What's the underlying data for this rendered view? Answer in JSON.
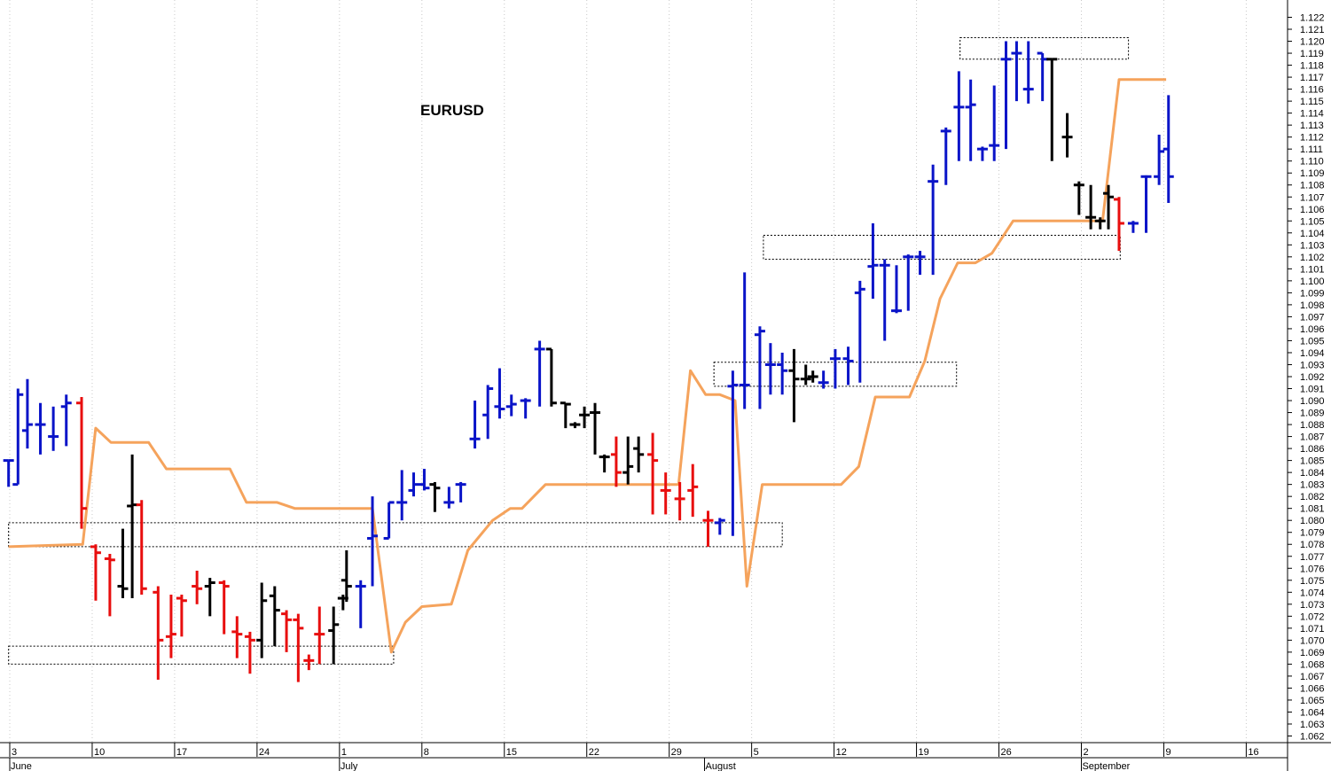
{
  "chart_data": {
    "type": "ohlc",
    "title": "EURUSD",
    "ylim": [
      1.0615,
      1.1228
    ],
    "y_ticks": [
      "1.062",
      "1.063",
      "1.064",
      "1.065",
      "1.066",
      "1.067",
      "1.068",
      "1.069",
      "1.070",
      "1.071",
      "1.072",
      "1.073",
      "1.074",
      "1.075",
      "1.076",
      "1.077",
      "1.078",
      "1.079",
      "1.080",
      "1.081",
      "1.082",
      "1.083",
      "1.084",
      "1.085",
      "1.086",
      "1.087",
      "1.088",
      "1.089",
      "1.090",
      "1.091",
      "1.092",
      "1.093",
      "1.094",
      "1.095",
      "1.096",
      "1.097",
      "1.098",
      "1.099",
      "1.100",
      "1.101",
      "1.102",
      "1.103",
      "1.104",
      "1.105",
      "1.106",
      "1.107",
      "1.108",
      "1.109",
      "1.110",
      "1.111",
      "1.112",
      "1.113",
      "1.114",
      "1.115",
      "1.116",
      "1.117",
      "1.118",
      "1.119",
      "1.120",
      "1.121",
      "1.122"
    ],
    "x_ticks": [
      {
        "label": "3",
        "day": 0
      },
      {
        "label": "10",
        "day": 7
      },
      {
        "label": "17",
        "day": 14
      },
      {
        "label": "24",
        "day": 21
      },
      {
        "label": "1",
        "day": 28
      },
      {
        "label": "8",
        "day": 35
      },
      {
        "label": "15",
        "day": 42
      },
      {
        "label": "22",
        "day": 49
      },
      {
        "label": "29",
        "day": 56
      },
      {
        "label": "5",
        "day": 63
      },
      {
        "label": "12",
        "day": 70
      },
      {
        "label": "19",
        "day": 77
      },
      {
        "label": "26",
        "day": 84
      },
      {
        "label": "2",
        "day": 91
      },
      {
        "label": "9",
        "day": 98
      },
      {
        "label": "16",
        "day": 105
      }
    ],
    "months": [
      {
        "label": "June",
        "day": 0
      },
      {
        "label": "July",
        "day": 28
      },
      {
        "label": "August",
        "day": 59
      },
      {
        "label": "September",
        "day": 91
      }
    ],
    "colors": {
      "up": "#0a14c8",
      "down": "#e80e0e",
      "neutral": "#000000",
      "line": "#f5a35c",
      "background": "#ffffff"
    },
    "bars": [
      {
        "day": -0.1,
        "o": 1.085,
        "h": 1.085,
        "l": 1.0828,
        "c": 1.085,
        "color": "up"
      },
      {
        "day": 0.7,
        "o": 1.083,
        "h": 1.091,
        "l": 1.083,
        "c": 1.0905,
        "color": "up"
      },
      {
        "day": 1.5,
        "o": 1.0875,
        "h": 1.0918,
        "l": 1.086,
        "c": 1.088,
        "color": "up"
      },
      {
        "day": 2.6,
        "o": 1.088,
        "h": 1.0898,
        "l": 1.0855,
        "c": 1.088,
        "color": "up"
      },
      {
        "day": 3.7,
        "o": 1.087,
        "h": 1.0895,
        "l": 1.0858,
        "c": 1.087,
        "color": "up"
      },
      {
        "day": 4.8,
        "o": 1.0895,
        "h": 1.0905,
        "l": 1.0862,
        "c": 1.0898,
        "color": "up"
      },
      {
        "day": 6.1,
        "o": 1.0898,
        "h": 1.0903,
        "l": 1.0793,
        "c": 1.081,
        "color": "down"
      },
      {
        "day": 7.3,
        "o": 1.0778,
        "h": 1.078,
        "l": 1.0733,
        "c": 1.0773,
        "color": "down"
      },
      {
        "day": 8.5,
        "o": 1.0768,
        "h": 1.0772,
        "l": 1.072,
        "c": 1.0767,
        "color": "down"
      },
      {
        "day": 9.6,
        "o": 1.0745,
        "h": 1.0793,
        "l": 1.0735,
        "c": 1.0743,
        "color": "neutral"
      },
      {
        "day": 10.4,
        "o": 1.0812,
        "h": 1.0855,
        "l": 1.0735,
        "c": 1.0813,
        "color": "neutral"
      },
      {
        "day": 11.2,
        "o": 1.0813,
        "h": 1.0817,
        "l": 1.0738,
        "c": 1.0743,
        "color": "down"
      },
      {
        "day": 12.6,
        "o": 1.074,
        "h": 1.0745,
        "l": 1.0667,
        "c": 1.07,
        "color": "down"
      },
      {
        "day": 13.7,
        "o": 1.0703,
        "h": 1.0738,
        "l": 1.0685,
        "c": 1.0705,
        "color": "down"
      },
      {
        "day": 14.6,
        "o": 1.0735,
        "h": 1.0738,
        "l": 1.0703,
        "c": 1.0733,
        "color": "down"
      },
      {
        "day": 15.9,
        "o": 1.0745,
        "h": 1.0758,
        "l": 1.073,
        "c": 1.0743,
        "color": "down"
      },
      {
        "day": 17.0,
        "o": 1.0745,
        "h": 1.0752,
        "l": 1.072,
        "c": 1.0748,
        "color": "neutral"
      },
      {
        "day": 18.2,
        "o": 1.0748,
        "h": 1.075,
        "l": 1.0705,
        "c": 1.0745,
        "color": "down"
      },
      {
        "day": 19.3,
        "o": 1.0707,
        "h": 1.072,
        "l": 1.0685,
        "c": 1.0705,
        "color": "down"
      },
      {
        "day": 20.4,
        "o": 1.0703,
        "h": 1.0707,
        "l": 1.0672,
        "c": 1.07,
        "color": "down"
      },
      {
        "day": 21.4,
        "o": 1.07,
        "h": 1.0748,
        "l": 1.0685,
        "c": 1.0733,
        "color": "neutral"
      },
      {
        "day": 22.5,
        "o": 1.0737,
        "h": 1.0745,
        "l": 1.0695,
        "c": 1.0725,
        "color": "neutral"
      },
      {
        "day": 23.5,
        "o": 1.0722,
        "h": 1.0725,
        "l": 1.069,
        "c": 1.0717,
        "color": "down"
      },
      {
        "day": 24.5,
        "o": 1.0717,
        "h": 1.0722,
        "l": 1.0665,
        "c": 1.071,
        "color": "down"
      },
      {
        "day": 25.4,
        "o": 1.0683,
        "h": 1.0688,
        "l": 1.0675,
        "c": 1.0683,
        "color": "down"
      },
      {
        "day": 26.3,
        "o": 1.0705,
        "h": 1.0728,
        "l": 1.068,
        "c": 1.0705,
        "color": "down"
      },
      {
        "day": 27.5,
        "o": 1.0708,
        "h": 1.0728,
        "l": 1.068,
        "c": 1.0713,
        "color": "neutral"
      },
      {
        "day": 28.3,
        "o": 1.0735,
        "h": 1.0738,
        "l": 1.0725,
        "c": 1.0735,
        "color": "neutral"
      },
      {
        "day": 28.6,
        "o": 1.075,
        "h": 1.0775,
        "l": 1.0732,
        "c": 1.0745,
        "color": "neutral"
      },
      {
        "day": 29.8,
        "o": 1.0745,
        "h": 1.075,
        "l": 1.071,
        "c": 1.0745,
        "color": "up"
      },
      {
        "day": 30.8,
        "o": 1.0785,
        "h": 1.082,
        "l": 1.0745,
        "c": 1.0787,
        "color": "up"
      },
      {
        "day": 32.2,
        "o": 1.0785,
        "h": 1.0815,
        "l": 1.0785,
        "c": 1.0815,
        "color": "up"
      },
      {
        "day": 33.3,
        "o": 1.0815,
        "h": 1.0842,
        "l": 1.08,
        "c": 1.0815,
        "color": "up"
      },
      {
        "day": 34.3,
        "o": 1.0825,
        "h": 1.084,
        "l": 1.082,
        "c": 1.083,
        "color": "up"
      },
      {
        "day": 35.2,
        "o": 1.083,
        "h": 1.0843,
        "l": 1.0825,
        "c": 1.0827,
        "color": "up"
      },
      {
        "day": 36.1,
        "o": 1.083,
        "h": 1.0832,
        "l": 1.0807,
        "c": 1.0827,
        "color": "neutral"
      },
      {
        "day": 37.3,
        "o": 1.0815,
        "h": 1.0828,
        "l": 1.081,
        "c": 1.0815,
        "color": "up"
      },
      {
        "day": 38.3,
        "o": 1.083,
        "h": 1.0832,
        "l": 1.0815,
        "c": 1.083,
        "color": "up"
      },
      {
        "day": 39.5,
        "o": 1.0868,
        "h": 1.09,
        "l": 1.086,
        "c": 1.0868,
        "color": "up"
      },
      {
        "day": 40.6,
        "o": 1.0888,
        "h": 1.0913,
        "l": 1.0868,
        "c": 1.091,
        "color": "up"
      },
      {
        "day": 41.6,
        "o": 1.0895,
        "h": 1.0927,
        "l": 1.0885,
        "c": 1.0893,
        "color": "up"
      },
      {
        "day": 42.6,
        "o": 1.0895,
        "h": 1.0905,
        "l": 1.0887,
        "c": 1.0897,
        "color": "up"
      },
      {
        "day": 43.8,
        "o": 1.09,
        "h": 1.0902,
        "l": 1.0885,
        "c": 1.09,
        "color": "up"
      },
      {
        "day": 45.0,
        "o": 1.0943,
        "h": 1.095,
        "l": 1.0895,
        "c": 1.0943,
        "color": "up"
      },
      {
        "day": 46.0,
        "o": 1.0943,
        "h": 1.0943,
        "l": 1.0895,
        "c": 1.0898,
        "color": "neutral"
      },
      {
        "day": 47.2,
        "o": 1.0898,
        "h": 1.0898,
        "l": 1.0877,
        "c": 1.0897,
        "color": "neutral"
      },
      {
        "day": 48.0,
        "o": 1.088,
        "h": 1.0882,
        "l": 1.0877,
        "c": 1.088,
        "color": "neutral"
      },
      {
        "day": 48.8,
        "o": 1.0888,
        "h": 1.0895,
        "l": 1.0877,
        "c": 1.0888,
        "color": "neutral"
      },
      {
        "day": 49.7,
        "o": 1.089,
        "h": 1.0898,
        "l": 1.0855,
        "c": 1.089,
        "color": "neutral"
      },
      {
        "day": 50.5,
        "o": 1.0853,
        "h": 1.0855,
        "l": 1.084,
        "c": 1.0853,
        "color": "neutral"
      },
      {
        "day": 51.5,
        "o": 1.0855,
        "h": 1.087,
        "l": 1.0828,
        "c": 1.084,
        "color": "down"
      },
      {
        "day": 52.5,
        "o": 1.084,
        "h": 1.087,
        "l": 1.083,
        "c": 1.0845,
        "color": "neutral"
      },
      {
        "day": 53.4,
        "o": 1.086,
        "h": 1.087,
        "l": 1.084,
        "c": 1.0855,
        "color": "neutral"
      },
      {
        "day": 54.6,
        "o": 1.0855,
        "h": 1.0873,
        "l": 1.0805,
        "c": 1.085,
        "color": "down"
      },
      {
        "day": 55.7,
        "o": 1.0825,
        "h": 1.084,
        "l": 1.0805,
        "c": 1.0825,
        "color": "down"
      },
      {
        "day": 56.9,
        "o": 1.0818,
        "h": 1.0832,
        "l": 1.08,
        "c": 1.0818,
        "color": "down"
      },
      {
        "day": 58.0,
        "o": 1.0825,
        "h": 1.0847,
        "l": 1.0803,
        "c": 1.0828,
        "color": "down"
      },
      {
        "day": 59.3,
        "o": 1.08,
        "h": 1.0808,
        "l": 1.0778,
        "c": 1.08,
        "color": "down"
      },
      {
        "day": 60.3,
        "o": 1.0798,
        "h": 1.0802,
        "l": 1.0788,
        "c": 1.08,
        "color": "up"
      },
      {
        "day": 61.4,
        "o": 1.0912,
        "h": 1.0925,
        "l": 1.0787,
        "c": 1.0913,
        "color": "up"
      },
      {
        "day": 62.4,
        "o": 1.0913,
        "h": 1.1007,
        "l": 1.0893,
        "c": 1.0913,
        "color": "up"
      },
      {
        "day": 63.7,
        "o": 1.0955,
        "h": 1.0962,
        "l": 1.0893,
        "c": 1.0958,
        "color": "up"
      },
      {
        "day": 64.6,
        "o": 1.093,
        "h": 1.0948,
        "l": 1.0905,
        "c": 1.093,
        "color": "up"
      },
      {
        "day": 65.6,
        "o": 1.093,
        "h": 1.094,
        "l": 1.0905,
        "c": 1.0925,
        "color": "up"
      },
      {
        "day": 66.6,
        "o": 1.0925,
        "h": 1.0943,
        "l": 1.0882,
        "c": 1.0918,
        "color": "neutral"
      },
      {
        "day": 67.6,
        "o": 1.0918,
        "h": 1.093,
        "l": 1.0913,
        "c": 1.0918,
        "color": "neutral"
      },
      {
        "day": 68.2,
        "o": 1.092,
        "h": 1.0925,
        "l": 1.0915,
        "c": 1.092,
        "color": "neutral"
      },
      {
        "day": 69.1,
        "o": 1.0915,
        "h": 1.0925,
        "l": 1.091,
        "c": 1.0915,
        "color": "up"
      },
      {
        "day": 70.1,
        "o": 1.0935,
        "h": 1.0943,
        "l": 1.091,
        "c": 1.0935,
        "color": "up"
      },
      {
        "day": 71.2,
        "o": 1.0935,
        "h": 1.0945,
        "l": 1.0913,
        "c": 1.0933,
        "color": "up"
      },
      {
        "day": 72.2,
        "o": 1.099,
        "h": 1.1,
        "l": 1.0915,
        "c": 1.0993,
        "color": "up"
      },
      {
        "day": 73.3,
        "o": 1.1012,
        "h": 1.1048,
        "l": 1.0985,
        "c": 1.1013,
        "color": "up"
      },
      {
        "day": 74.3,
        "o": 1.1013,
        "h": 1.1018,
        "l": 1.095,
        "c": 1.1013,
        "color": "up"
      },
      {
        "day": 75.3,
        "o": 1.0975,
        "h": 1.1013,
        "l": 1.0973,
        "c": 1.0975,
        "color": "up"
      },
      {
        "day": 76.3,
        "o": 1.102,
        "h": 1.1022,
        "l": 1.0975,
        "c": 1.102,
        "color": "up"
      },
      {
        "day": 77.3,
        "o": 1.102,
        "h": 1.1025,
        "l": 1.1005,
        "c": 1.102,
        "color": "up"
      },
      {
        "day": 78.4,
        "o": 1.1083,
        "h": 1.1097,
        "l": 1.1005,
        "c": 1.1083,
        "color": "up"
      },
      {
        "day": 79.5,
        "o": 1.1125,
        "h": 1.1128,
        "l": 1.108,
        "c": 1.1125,
        "color": "up"
      },
      {
        "day": 80.6,
        "o": 1.1145,
        "h": 1.1175,
        "l": 1.11,
        "c": 1.1145,
        "color": "up"
      },
      {
        "day": 81.6,
        "o": 1.1145,
        "h": 1.1168,
        "l": 1.11,
        "c": 1.1147,
        "color": "up"
      },
      {
        "day": 82.6,
        "o": 1.111,
        "h": 1.1112,
        "l": 1.11,
        "c": 1.111,
        "color": "up"
      },
      {
        "day": 83.6,
        "o": 1.1113,
        "h": 1.1163,
        "l": 1.11,
        "c": 1.1113,
        "color": "up"
      },
      {
        "day": 84.6,
        "o": 1.1185,
        "h": 1.12,
        "l": 1.111,
        "c": 1.1185,
        "color": "up"
      },
      {
        "day": 85.5,
        "o": 1.119,
        "h": 1.12,
        "l": 1.115,
        "c": 1.119,
        "color": "up"
      },
      {
        "day": 86.5,
        "o": 1.116,
        "h": 1.12,
        "l": 1.1148,
        "c": 1.116,
        "color": "up"
      },
      {
        "day": 87.7,
        "o": 1.119,
        "h": 1.119,
        "l": 1.115,
        "c": 1.1185,
        "color": "up"
      },
      {
        "day": 88.5,
        "o": 1.1185,
        "h": 1.1185,
        "l": 1.11,
        "c": 1.1185,
        "color": "neutral"
      },
      {
        "day": 89.8,
        "o": 1.112,
        "h": 1.114,
        "l": 1.1103,
        "c": 1.112,
        "color": "neutral"
      },
      {
        "day": 90.8,
        "o": 1.108,
        "h": 1.1083,
        "l": 1.1055,
        "c": 1.108,
        "color": "neutral"
      },
      {
        "day": 91.8,
        "o": 1.1053,
        "h": 1.108,
        "l": 1.1043,
        "c": 1.1053,
        "color": "neutral"
      },
      {
        "day": 92.6,
        "o": 1.105,
        "h": 1.1053,
        "l": 1.1043,
        "c": 1.105,
        "color": "neutral"
      },
      {
        "day": 93.3,
        "o": 1.1073,
        "h": 1.108,
        "l": 1.1043,
        "c": 1.107,
        "color": "neutral"
      },
      {
        "day": 94.2,
        "o": 1.1068,
        "h": 1.107,
        "l": 1.1025,
        "c": 1.1048,
        "color": "down"
      },
      {
        "day": 95.4,
        "o": 1.1048,
        "h": 1.105,
        "l": 1.104,
        "c": 1.1048,
        "color": "up"
      },
      {
        "day": 96.5,
        "o": 1.1087,
        "h": 1.1088,
        "l": 1.104,
        "c": 1.1087,
        "color": "up"
      },
      {
        "day": 97.6,
        "o": 1.1087,
        "h": 1.1122,
        "l": 1.108,
        "c": 1.1108,
        "color": "up"
      },
      {
        "day": 98.4,
        "o": 1.111,
        "h": 1.1155,
        "l": 1.1065,
        "c": 1.1087,
        "color": "up"
      }
    ],
    "line_series": [
      [
        -0.1,
        1.0778
      ],
      [
        6.2,
        1.078
      ],
      [
        7.3,
        1.0877
      ],
      [
        8.6,
        1.0865
      ],
      [
        11.8,
        1.0865
      ],
      [
        13.3,
        1.0843
      ],
      [
        18.7,
        1.0843
      ],
      [
        20.1,
        1.0815
      ],
      [
        22.7,
        1.0815
      ],
      [
        24.2,
        1.081
      ],
      [
        30.8,
        1.081
      ],
      [
        32.4,
        1.069
      ],
      [
        33.6,
        1.0715
      ],
      [
        35.0,
        1.0728
      ],
      [
        37.5,
        1.073
      ],
      [
        38.9,
        1.0775
      ],
      [
        41.0,
        1.08
      ],
      [
        42.5,
        1.081
      ],
      [
        43.5,
        1.081
      ],
      [
        45.5,
        1.083
      ],
      [
        56.8,
        1.083
      ],
      [
        57.8,
        1.0925
      ],
      [
        59.1,
        1.0905
      ],
      [
        60.3,
        1.0905
      ],
      [
        61.6,
        1.09
      ],
      [
        62.6,
        1.0745
      ],
      [
        63.9,
        1.083
      ],
      [
        70.6,
        1.083
      ],
      [
        72.1,
        1.0845
      ],
      [
        73.5,
        1.0903
      ],
      [
        76.4,
        1.0903
      ],
      [
        77.7,
        1.0933
      ],
      [
        79.0,
        1.0985
      ],
      [
        80.5,
        1.1015
      ],
      [
        82.0,
        1.1015
      ],
      [
        83.4,
        1.1023
      ],
      [
        85.2,
        1.105
      ],
      [
        92.8,
        1.105
      ],
      [
        94.2,
        1.1168
      ],
      [
        98.2,
        1.1168
      ]
    ],
    "zones": [
      {
        "start": -0.1,
        "end": 32.6,
        "y1": 1.0695,
        "y2": 1.068
      },
      {
        "start": -0.1,
        "end": 65.6,
        "y1": 1.0798,
        "y2": 1.0778
      },
      {
        "start": 59.8,
        "end": 80.4,
        "y1": 1.0932,
        "y2": 1.0912
      },
      {
        "start": 64.0,
        "end": 94.3,
        "y1": 1.1038,
        "y2": 1.1018
      },
      {
        "start": 80.7,
        "end": 95.0,
        "y1": 1.1203,
        "y2": 1.1185
      }
    ]
  }
}
